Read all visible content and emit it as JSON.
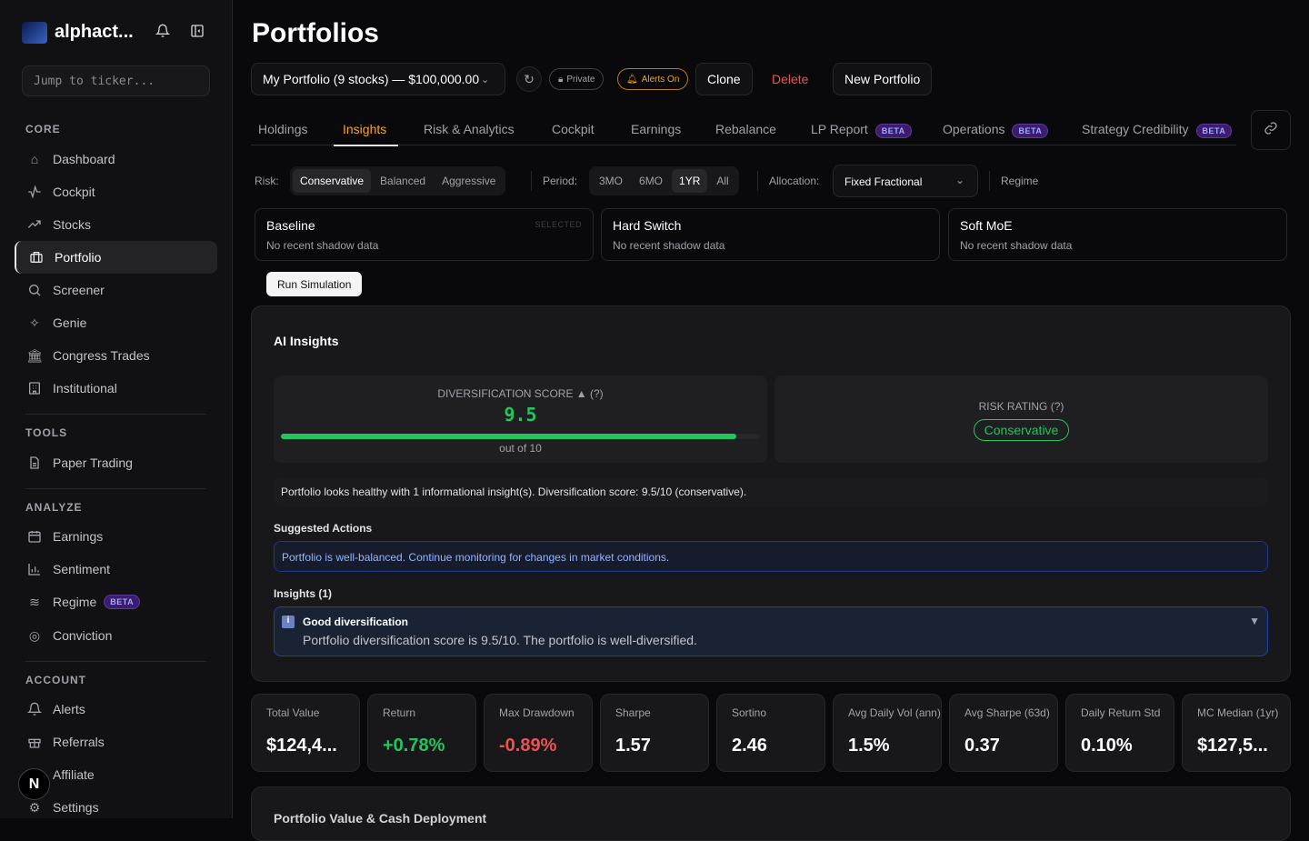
{
  "sidebar": {
    "brand": "alphact...",
    "ticker_placeholder": "Jump to ticker...",
    "sections": {
      "core": "CORE",
      "tools": "TOOLS",
      "analyze": "ANALYZE",
      "account": "ACCOUNT"
    },
    "items": {
      "dashboard": "Dashboard",
      "cockpit": "Cockpit",
      "stocks": "Stocks",
      "portfolio": "Portfolio",
      "screener": "Screener",
      "genie": "Genie",
      "congress": "Congress Trades",
      "institutional": "Institutional",
      "paper": "Paper Trading",
      "earnings": "Earnings",
      "sentiment": "Sentiment",
      "regime": "Regime",
      "conviction": "Conviction",
      "alerts": "Alerts",
      "referrals": "Referrals",
      "affiliate": "Affiliate",
      "settings": "Settings"
    },
    "beta": "BETA",
    "avatar": "N"
  },
  "header": {
    "title": "Portfolios",
    "portfolio_select": "My Portfolio (9 stocks) — $100,000.00",
    "private": "Private",
    "alerts": "Alerts On",
    "clone": "Clone",
    "delete": "Delete",
    "new": "New Portfolio"
  },
  "tabs": [
    "Holdings",
    "Insights",
    "Risk & Analytics",
    "Cockpit",
    "Earnings",
    "Rebalance",
    "LP Report",
    "Operations",
    "Strategy Credibility"
  ],
  "beta": "BETA",
  "filters": {
    "risk_label": "Risk:",
    "risk": [
      "Conservative",
      "Balanced",
      "Aggressive"
    ],
    "period_label": "Period:",
    "period": [
      "3MO",
      "6MO",
      "1YR",
      "All"
    ],
    "allocation_label": "Allocation:",
    "allocation": "Fixed Fractional",
    "regime": "Regime"
  },
  "strategies": [
    {
      "name": "Baseline",
      "status": "No recent shadow data",
      "tag": "SELECTED"
    },
    {
      "name": "Hard Switch",
      "status": "No recent shadow data"
    },
    {
      "name": "Soft MoE",
      "status": "No recent shadow data"
    }
  ],
  "run_simulation": "Run Simulation",
  "insights": {
    "title": "AI Insights",
    "div_label": "DIVERSIFICATION SCORE ▲  (?)",
    "div_score": "9.5",
    "div_fraction": 0.95,
    "div_outof": "out of 10",
    "risk_label": "RISK RATING  (?)",
    "risk_value": "Conservative",
    "summary": "Portfolio looks healthy with 1 informational insight(s). Diversification score: 9.5/10 (conservative).",
    "actions_label": "Suggested Actions",
    "action": "Portfolio is well-balanced. Continue monitoring for changes in market conditions.",
    "list_label": "Insights (1)",
    "item_title": "Good diversification",
    "item_body": "Portfolio diversification score is 9.5/10. The portfolio is well-diversified."
  },
  "metrics": [
    {
      "label": "Total Value",
      "value": "$124,4...",
      "color": "#ffffff"
    },
    {
      "label": "Return",
      "value": "+0.78%",
      "color": "#22c55e"
    },
    {
      "label": "Max Drawdown",
      "value": "-0.89%",
      "color": "#f05252"
    },
    {
      "label": "Sharpe",
      "value": "1.57",
      "color": "#ffffff"
    },
    {
      "label": "Sortino",
      "value": "2.46",
      "color": "#ffffff"
    },
    {
      "label": "Avg Daily Vol (ann)",
      "value": "1.5%",
      "color": "#ffffff"
    },
    {
      "label": "Avg Sharpe (63d)",
      "value": "0.37",
      "color": "#ffffff"
    },
    {
      "label": "Daily Return Std",
      "value": "0.10%",
      "color": "#ffffff"
    },
    {
      "label": "MC Median (1yr)",
      "value": "$127,5...",
      "color": "#ffffff"
    }
  ],
  "bottom_title": "Portfolio Value & Cash Deployment"
}
